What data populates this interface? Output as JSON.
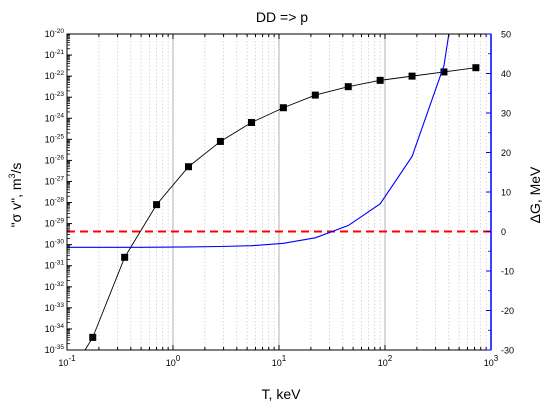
{
  "chart_data": {
    "type": "line",
    "title": "DD => p",
    "xlabel": "T, keV",
    "ylabel": "\"σ v\", m³/s",
    "ylabel_parts": {
      "prefix": "\"σ v\", m",
      "sup": "3",
      "suffix": "/s"
    },
    "y2label": "ΔG, MeV",
    "x_scale": "log",
    "xlim": [
      0.1,
      1000
    ],
    "y_scale": "log",
    "ylim_exp": [
      -35,
      -20
    ],
    "y2lim": [
      -30,
      50
    ],
    "x_ticks": [
      {
        "value": 0.1,
        "base": "10",
        "exp": "-1"
      },
      {
        "value": 1,
        "base": "10",
        "exp": "0"
      },
      {
        "value": 10,
        "base": "10",
        "exp": "1"
      },
      {
        "value": 100,
        "base": "10",
        "exp": "2"
      },
      {
        "value": 1000,
        "base": "10",
        "exp": "3"
      }
    ],
    "y_ticks": [
      {
        "exp": -35,
        "base": "10",
        "label": "-35"
      },
      {
        "exp": -34,
        "base": "10",
        "label": "-34"
      },
      {
        "exp": -33,
        "base": "10",
        "label": "-33"
      },
      {
        "exp": -32,
        "base": "10",
        "label": "-32"
      },
      {
        "exp": -31,
        "base": "10",
        "label": "-31"
      },
      {
        "exp": -30,
        "base": "10",
        "label": "-30"
      },
      {
        "exp": -29,
        "base": "10",
        "label": "-29"
      },
      {
        "exp": -28,
        "base": "10",
        "label": "-28"
      },
      {
        "exp": -27,
        "base": "10",
        "label": "-27"
      },
      {
        "exp": -26,
        "base": "10",
        "label": "-26"
      },
      {
        "exp": -25,
        "base": "10",
        "label": "-25"
      },
      {
        "exp": -24,
        "base": "10",
        "label": "-24"
      },
      {
        "exp": -23,
        "base": "10",
        "label": "-23"
      },
      {
        "exp": -22,
        "base": "10",
        "label": "-22"
      },
      {
        "exp": -21,
        "base": "10",
        "label": "-21"
      },
      {
        "exp": -20,
        "base": "10",
        "label": "-20"
      }
    ],
    "y2_ticks": [
      "-30",
      "-20",
      "-10",
      "0",
      "10",
      "20",
      "30",
      "40",
      "50"
    ],
    "grid": "vertical",
    "series": [
      {
        "axis": "left",
        "color": "#000000",
        "marker": "square",
        "points": [
          {
            "x": 0.1,
            "yexp": -36.4,
            "marker": false
          },
          {
            "x": 0.175,
            "yexp": -34.4,
            "marker": true
          },
          {
            "x": 0.35,
            "yexp": -30.6,
            "marker": true
          },
          {
            "x": 0.7,
            "yexp": -28.1,
            "marker": true
          },
          {
            "x": 1.4,
            "yexp": -26.3,
            "marker": true
          },
          {
            "x": 2.8,
            "yexp": -25.1,
            "marker": true
          },
          {
            "x": 5.5,
            "yexp": -24.2,
            "marker": true
          },
          {
            "x": 11,
            "yexp": -23.5,
            "marker": true
          },
          {
            "x": 22,
            "yexp": -22.9,
            "marker": true
          },
          {
            "x": 45,
            "yexp": -22.5,
            "marker": true
          },
          {
            "x": 90,
            "yexp": -22.2,
            "marker": true
          },
          {
            "x": 180,
            "yexp": -22.0,
            "marker": true
          },
          {
            "x": 360,
            "yexp": -21.8,
            "marker": true
          },
          {
            "x": 720,
            "yexp": -21.6,
            "marker": true
          }
        ]
      },
      {
        "axis": "right",
        "color": "#0000ff",
        "marker": "none",
        "points": [
          {
            "x": 0.1,
            "y": -4.0
          },
          {
            "x": 0.5,
            "y": -4.0
          },
          {
            "x": 1.4,
            "y": -3.9
          },
          {
            "x": 2.8,
            "y": -3.8
          },
          {
            "x": 5.5,
            "y": -3.6
          },
          {
            "x": 11,
            "y": -3.0
          },
          {
            "x": 22,
            "y": -1.6
          },
          {
            "x": 45,
            "y": 1.5
          },
          {
            "x": 90,
            "y": 7.0
          },
          {
            "x": 180,
            "y": 19.0
          },
          {
            "x": 360,
            "y": 42.0
          },
          {
            "x": 400,
            "y": 50.0
          }
        ]
      }
    ],
    "reference_line": {
      "axis": "right",
      "y": 0,
      "color": "#ff0000",
      "style": "dashed"
    }
  }
}
